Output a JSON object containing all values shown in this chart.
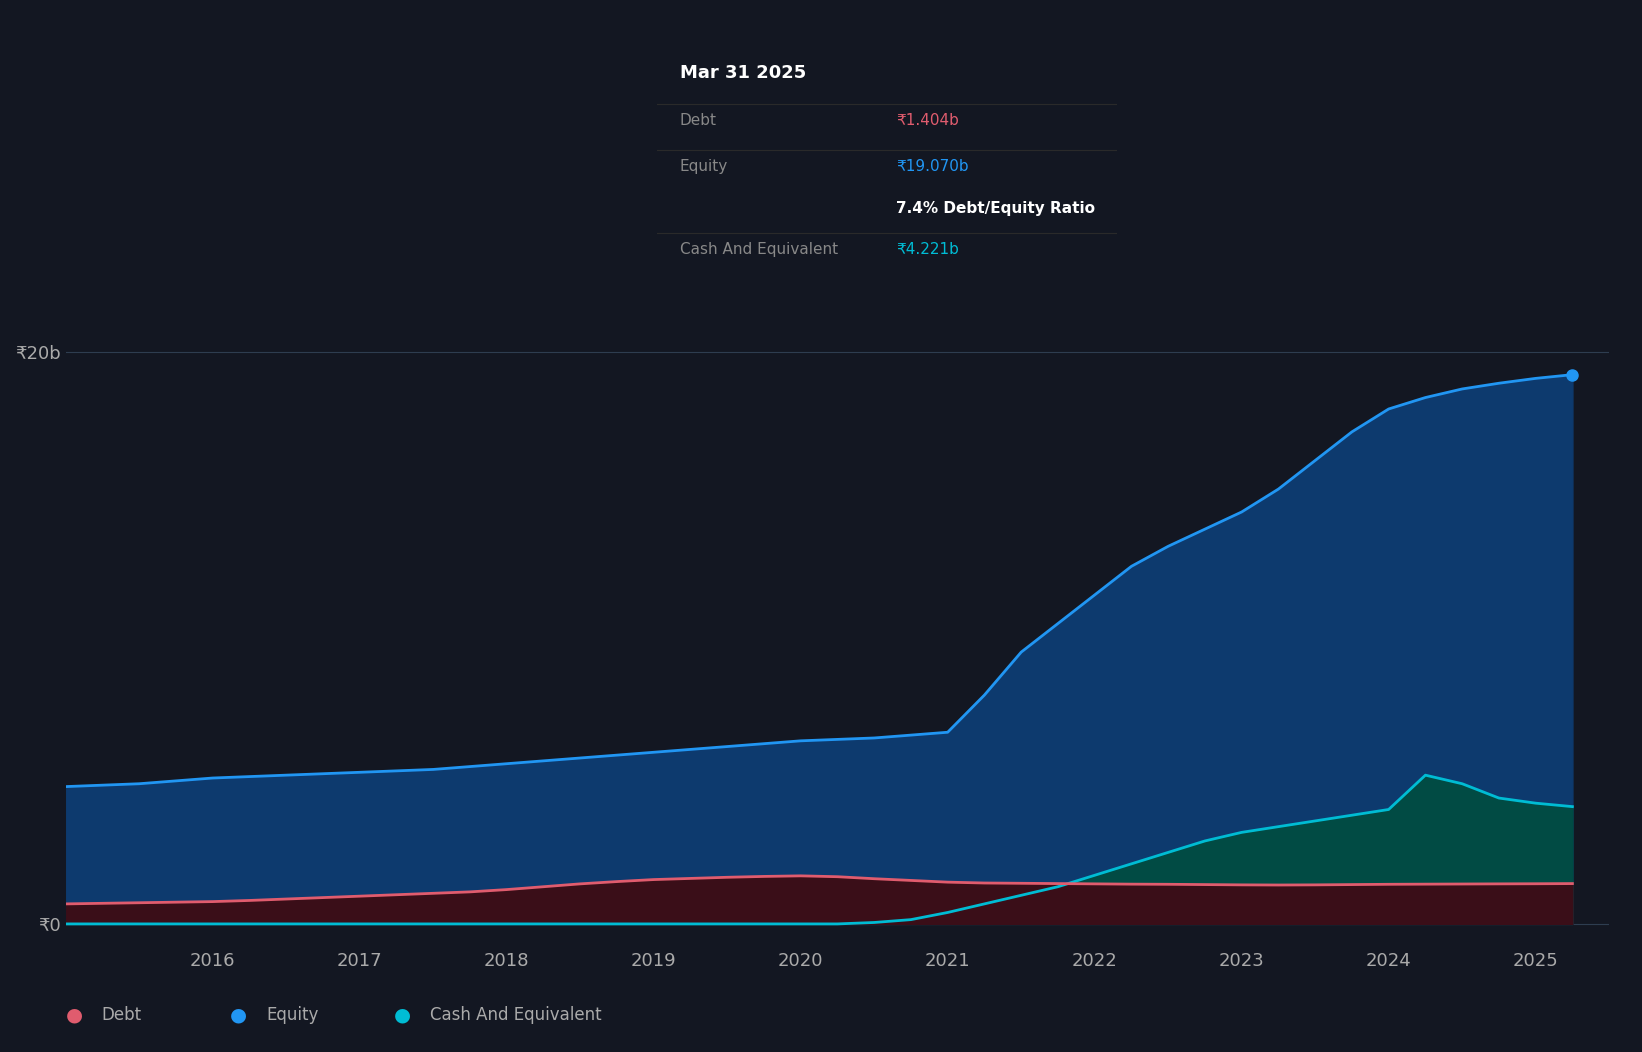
{
  "bg_color": "#131722",
  "ytick_labels": [
    "₹0",
    "₹20b"
  ],
  "years_x": [
    2015.0,
    2015.25,
    2015.5,
    2015.75,
    2016.0,
    2016.25,
    2016.5,
    2016.75,
    2017.0,
    2017.25,
    2017.5,
    2017.75,
    2018.0,
    2018.25,
    2018.5,
    2018.75,
    2019.0,
    2019.25,
    2019.5,
    2019.75,
    2020.0,
    2020.25,
    2020.5,
    2020.75,
    2021.0,
    2021.25,
    2021.5,
    2021.75,
    2022.0,
    2022.25,
    2022.5,
    2022.75,
    2023.0,
    2023.25,
    2023.5,
    2023.75,
    2024.0,
    2024.25,
    2024.5,
    2024.75,
    2025.0,
    2025.25
  ],
  "equity": [
    4800000000,
    4850000000,
    4900000000,
    5000000000,
    5100000000,
    5150000000,
    5200000000,
    5250000000,
    5300000000,
    5350000000,
    5400000000,
    5500000000,
    5600000000,
    5700000000,
    5800000000,
    5900000000,
    6000000000,
    6100000000,
    6200000000,
    6300000000,
    6400000000,
    6450000000,
    6500000000,
    6600000000,
    6700000000,
    8000000000,
    9500000000,
    10500000000,
    11500000000,
    12500000000,
    13200000000,
    13800000000,
    14400000000,
    15200000000,
    16200000000,
    17200000000,
    18000000000,
    18400000000,
    18700000000,
    18900000000,
    19070000000,
    19200000000
  ],
  "debt": [
    700000000,
    720000000,
    740000000,
    760000000,
    780000000,
    820000000,
    870000000,
    920000000,
    970000000,
    1020000000,
    1070000000,
    1120000000,
    1200000000,
    1300000000,
    1400000000,
    1480000000,
    1550000000,
    1590000000,
    1630000000,
    1660000000,
    1680000000,
    1650000000,
    1580000000,
    1520000000,
    1460000000,
    1430000000,
    1420000000,
    1410000000,
    1400000000,
    1390000000,
    1385000000,
    1375000000,
    1365000000,
    1360000000,
    1365000000,
    1375000000,
    1385000000,
    1390000000,
    1395000000,
    1400000000,
    1404000000,
    1410000000
  ],
  "cash": [
    0,
    0,
    0,
    0,
    0,
    0,
    0,
    0,
    0,
    0,
    0,
    0,
    0,
    0,
    0,
    0,
    0,
    0,
    0,
    0,
    0,
    0,
    50000000,
    150000000,
    400000000,
    700000000,
    1000000000,
    1300000000,
    1700000000,
    2100000000,
    2500000000,
    2900000000,
    3200000000,
    3400000000,
    3600000000,
    3800000000,
    4000000000,
    5200000000,
    4900000000,
    4400000000,
    4221000000,
    4100000000
  ],
  "equity_color": "#2196f3",
  "equity_fill": "#0d3a6e",
  "debt_color": "#e05c6e",
  "debt_fill": "#3a0e18",
  "cash_color": "#00bcd4",
  "cash_fill": "#004d40",
  "xtick_positions": [
    2016.0,
    2017.0,
    2018.0,
    2019.0,
    2020.0,
    2021.0,
    2022.0,
    2023.0,
    2024.0,
    2025.0
  ],
  "xtick_labels": [
    "2016",
    "2017",
    "2018",
    "2019",
    "2020",
    "2021",
    "2022",
    "2023",
    "2024",
    "2025"
  ],
  "tooltip_date": "Mar 31 2025",
  "tooltip_debt_label": "Debt",
  "tooltip_debt_value": "₹1.404b",
  "tooltip_equity_label": "Equity",
  "tooltip_equity_value": "₹19.070b",
  "tooltip_ratio": "7.4% Debt/Equity Ratio",
  "tooltip_cash_label": "Cash And Equivalent",
  "tooltip_cash_value": "₹4.221b",
  "legend_items": [
    "Debt",
    "Equity",
    "Cash And Equivalent"
  ],
  "legend_colors": [
    "#e05c6e",
    "#2196f3",
    "#00bcd4"
  ]
}
